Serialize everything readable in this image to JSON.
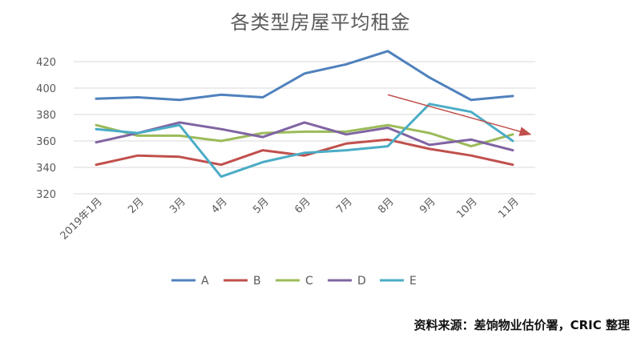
{
  "chart_data": {
    "type": "line",
    "title": "各类型房屋平均租金",
    "categories": [
      "2019年1月",
      "2月",
      "3月",
      "4月",
      "5月",
      "6月",
      "7月",
      "8月",
      "9月",
      "10月",
      "11月"
    ],
    "ylim": [
      320,
      430
    ],
    "yticks": [
      320,
      340,
      360,
      380,
      400,
      420
    ],
    "grid": true,
    "legend_position": "bottom",
    "series": [
      {
        "name": "A",
        "color": "#4f81bd",
        "values": [
          392,
          393,
          391,
          395,
          393,
          411,
          418,
          428,
          408,
          391,
          394
        ]
      },
      {
        "name": "B",
        "color": "#c0504d",
        "values": [
          342,
          349,
          348,
          342,
          353,
          349,
          358,
          361,
          354,
          349,
          342
        ]
      },
      {
        "name": "C",
        "color": "#9bbb59",
        "values": [
          372,
          364,
          364,
          360,
          366,
          367,
          367,
          372,
          366,
          356,
          365
        ]
      },
      {
        "name": "D",
        "color": "#8064a2",
        "values": [
          359,
          366,
          374,
          369,
          363,
          374,
          365,
          370,
          357,
          361,
          353
        ]
      },
      {
        "name": "E",
        "color": "#4bacc6",
        "values": [
          369,
          366,
          372,
          333,
          344,
          351,
          353,
          356,
          388,
          382,
          360
        ]
      }
    ],
    "annotations": [
      {
        "type": "trend-arrow",
        "color": "#c0504d",
        "from": {
          "x": "8月",
          "y": 395
        },
        "to": {
          "x": "11月",
          "y": 365
        }
      }
    ]
  },
  "source_note": "资料来源：差饷物业估价署，CRIC 整理"
}
